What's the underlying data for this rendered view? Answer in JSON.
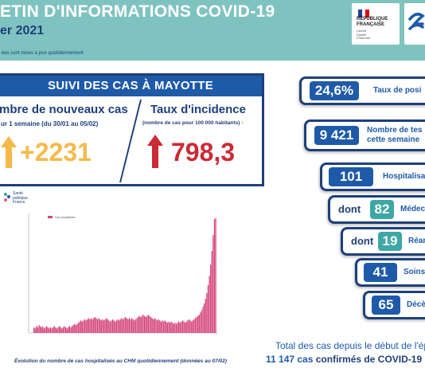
{
  "header": {
    "title": "ETIN D'INFORMATIONS COVID-19",
    "date": "er 2021",
    "note": "ées sont mises à jour quotidiennement"
  },
  "logos": {
    "republique": {
      "name_lines": [
        "RÉPUBLIQUE",
        "FRANÇAISE"
      ],
      "motto_lines": [
        "Liberté",
        "Égalité",
        "Fraternité"
      ],
      "flag_colors": [
        "#1f3f99",
        "#ffffff",
        "#e1000f"
      ]
    },
    "sante_publique": {
      "lines": [
        "Santé",
        "publique",
        "France"
      ]
    }
  },
  "suivi": {
    "title": "SUIVI DES CAS À MAYOTTE",
    "nouveaux_cas": {
      "title": "mbre de nouveaux cas",
      "subtitle": "ur 1 semaine (du 30/01 au 05/02)",
      "value": "+2231",
      "color": "#f5b94a"
    },
    "incidence": {
      "title": "Taux d'incidence",
      "subtitle": "(nombre de cas pour 100 000 habitants) :",
      "value": "798,3",
      "color": "#cc2a36"
    }
  },
  "chart": {
    "caption": "Évolution du nombre de cas hospitalisés au CHM quotidiennement (données au 07/02)",
    "legend": "Cas hospitalisés",
    "bar_color": "#d4447a"
  },
  "chart_data": {
    "type": "bar",
    "title": "",
    "series": [
      {
        "name": "Cas hospitalisés",
        "values": [
          5,
          4,
          6,
          5,
          7,
          6,
          5,
          6,
          4,
          5,
          6,
          5,
          4,
          5,
          4,
          5,
          6,
          5,
          4,
          5,
          6,
          5,
          4,
          5,
          6,
          5,
          4,
          5,
          6,
          5,
          6,
          7,
          8,
          7,
          8,
          9,
          10,
          11,
          10,
          11,
          12,
          11,
          12,
          13,
          12,
          13,
          12,
          13,
          14,
          13,
          12,
          13,
          12,
          11,
          12,
          11,
          12,
          13,
          12,
          11,
          10,
          11,
          12,
          11,
          10,
          11,
          12,
          11,
          12,
          13,
          12,
          13,
          14,
          13,
          12,
          13,
          12,
          13,
          12,
          11,
          12,
          13,
          14,
          15,
          14,
          15,
          16,
          15,
          14,
          15,
          16,
          15,
          14,
          13,
          12,
          13,
          12,
          11,
          12,
          11,
          10,
          11,
          10,
          11,
          10,
          9,
          10,
          9,
          10,
          9,
          8,
          9,
          8,
          9,
          10,
          9,
          10,
          11,
          10,
          9,
          10,
          11,
          12,
          11,
          10,
          11,
          12,
          13,
          14,
          15,
          16,
          18,
          20,
          23,
          26,
          30,
          35,
          42,
          50,
          60,
          72,
          86,
          100,
          101
        ]
      }
    ],
    "ylim": [
      0,
      105
    ],
    "grid": false,
    "legend_position": "top-left"
  },
  "stats": [
    {
      "value": "24,6%",
      "label": "Taux de posi"
    },
    {
      "value": "9 421",
      "label_lines": [
        "Nombre de tes",
        "cette semaine"
      ]
    },
    {
      "value": "101",
      "label": "Hospitalisa"
    },
    {
      "prefix": "dont",
      "value": "82",
      "label": "Médec",
      "teal": true
    },
    {
      "prefix": "dont",
      "value": "19",
      "label": "Réan",
      "teal": true
    },
    {
      "value": "41",
      "label": "Soins a"
    },
    {
      "value": "65",
      "label": "Décè"
    }
  ],
  "total": {
    "line1": "Total des cas depuis le début de l'ép",
    "number": "11 147 cas",
    "label": "confirmés de COVID-19"
  }
}
